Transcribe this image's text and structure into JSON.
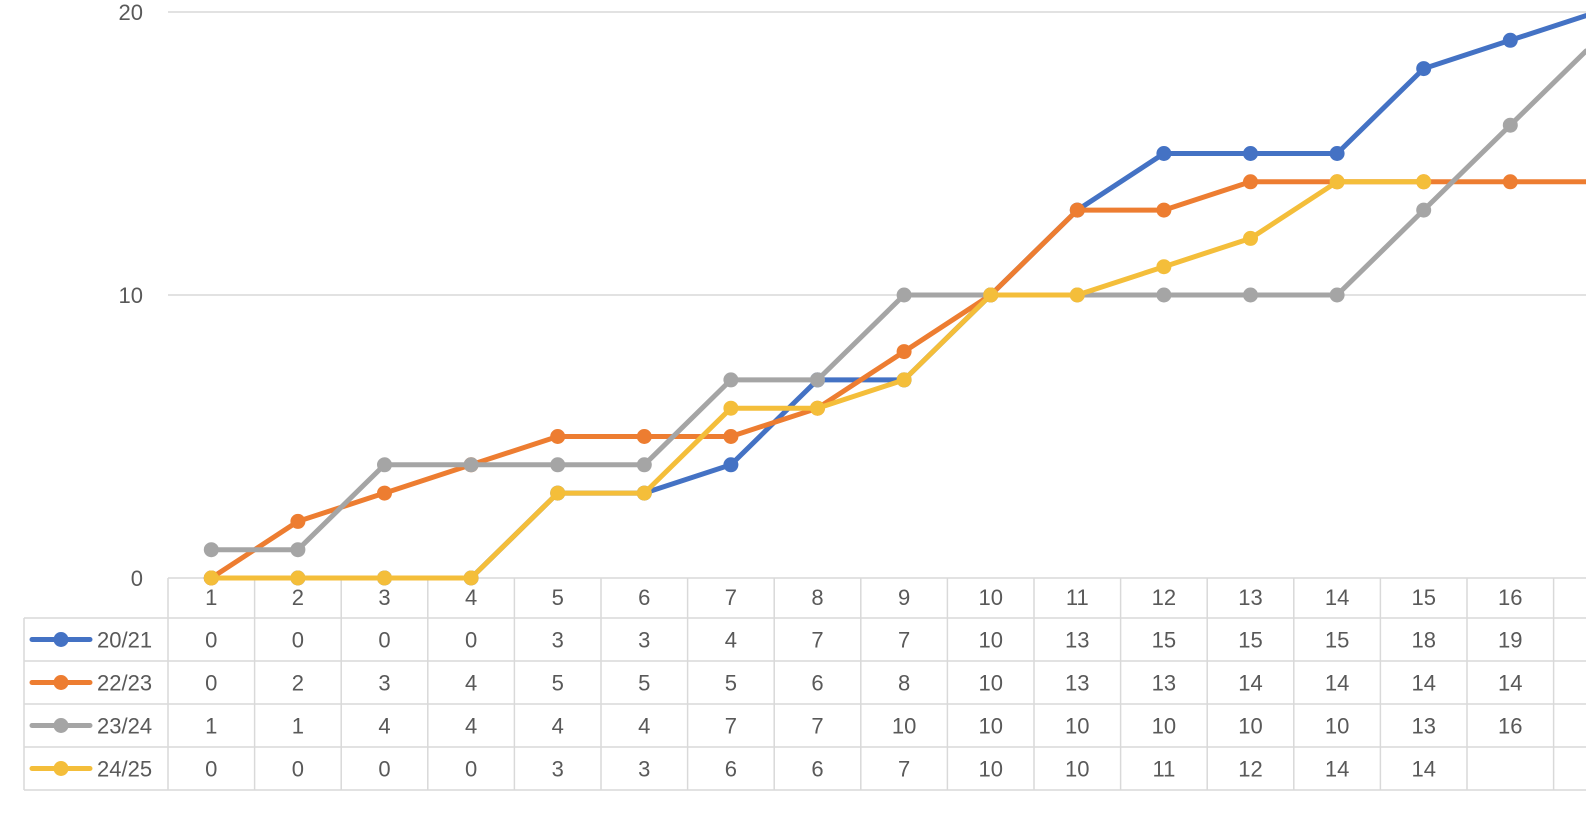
{
  "chart_data": {
    "type": "line",
    "title": "",
    "xlabel": "",
    "ylabel": "",
    "x": [
      "1",
      "2",
      "3",
      "4",
      "5",
      "6",
      "7",
      "8",
      "9",
      "10",
      "11",
      "12",
      "13",
      "14",
      "15",
      "16"
    ],
    "ylim": [
      0,
      20
    ],
    "yticks": [
      "0",
      "10",
      "20"
    ],
    "grid": true,
    "legend": "data-table-left",
    "series": [
      {
        "name": "20/21",
        "color": "#4472C4",
        "values": [
          0,
          0,
          0,
          0,
          3,
          3,
          4,
          7,
          7,
          10,
          13,
          15,
          15,
          15,
          18,
          19
        ]
      },
      {
        "name": "22/23",
        "color": "#ED7D31",
        "values": [
          0,
          2,
          3,
          4,
          5,
          5,
          5,
          6,
          8,
          10,
          13,
          13,
          14,
          14,
          14,
          14
        ]
      },
      {
        "name": "23/24",
        "color": "#A5A5A5",
        "values": [
          1,
          1,
          4,
          4,
          4,
          4,
          7,
          7,
          10,
          10,
          10,
          10,
          10,
          10,
          13,
          16
        ]
      },
      {
        "name": "24/25",
        "color": "#F4BE3A",
        "values": [
          0,
          0,
          0,
          0,
          3,
          3,
          6,
          6,
          7,
          10,
          10,
          11,
          12,
          14,
          14,
          null
        ]
      }
    ]
  }
}
